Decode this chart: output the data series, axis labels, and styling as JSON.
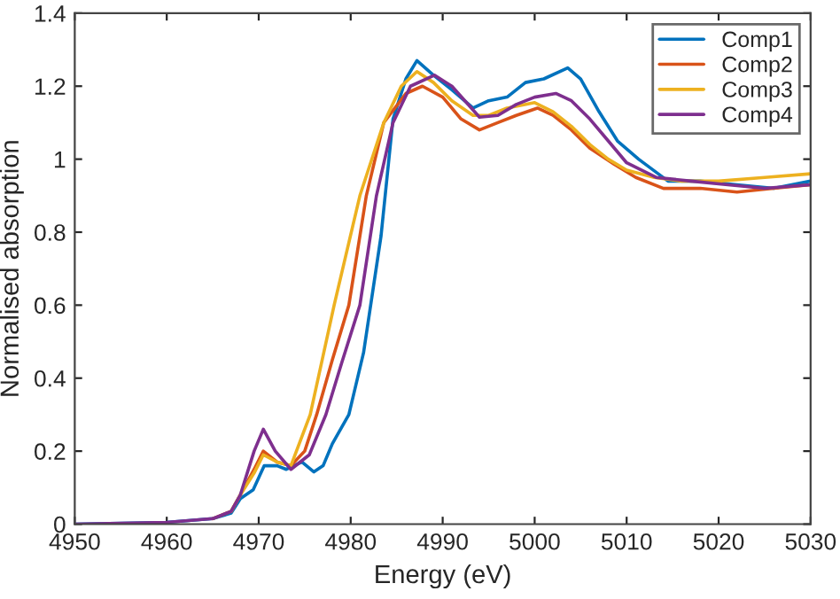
{
  "chart_data": {
    "type": "line",
    "xlabel": "Energy (eV)",
    "ylabel": "Normalised absorption",
    "xlim": [
      4950,
      5030
    ],
    "xticks": [
      4950,
      4960,
      4970,
      4980,
      4990,
      5000,
      5010,
      5020,
      5030
    ],
    "ylim": [
      0,
      1.4
    ],
    "yticks": [
      0,
      0.2,
      0.4,
      0.6,
      0.8,
      1,
      1.2,
      1.4
    ],
    "grid": false,
    "legend": "top right",
    "marker": "none",
    "line_style": "solid",
    "series": [
      {
        "name": "Comp1",
        "color": "#0072bd",
        "x": [
          4950,
          4960,
          4965,
          4967,
          4968,
          4969.4,
          4970.6,
          4972,
          4973,
          4974.7,
          4976,
          4977,
          4978,
          4979.8,
          4981.4,
          4983.3,
          4984.6,
          4986,
          4987.2,
          4989,
          4991,
          4993.3,
          4995,
          4997,
          4999,
          5001,
          5003.6,
          5005,
          5007,
          5009,
          5011.3,
          5014.5,
          5018,
          5022,
          5026,
          5030
        ],
        "values": [
          0,
          0.005,
          0.015,
          0.03,
          0.07,
          0.094,
          0.16,
          0.16,
          0.15,
          0.17,
          0.143,
          0.16,
          0.22,
          0.3,
          0.47,
          0.79,
          1.11,
          1.22,
          1.27,
          1.23,
          1.19,
          1.14,
          1.16,
          1.17,
          1.21,
          1.22,
          1.25,
          1.22,
          1.13,
          1.05,
          1.0,
          0.94,
          0.94,
          0.93,
          0.92,
          0.94
        ]
      },
      {
        "name": "Comp2",
        "color": "#d95319",
        "x": [
          4965,
          4967,
          4968,
          4969.5,
          4970.5,
          4972,
          4973.5,
          4975,
          4976.3,
          4978,
          4979.8,
          4981.7,
          4983.6,
          4986,
          4987.8,
          4990,
          4992,
          4994,
          4996,
          4998,
          5000.3,
          5002,
          5004,
          5006,
          5008.7,
          5011,
          5014,
          5018,
          5022,
          5026,
          5030
        ],
        "values": [
          0.015,
          0.035,
          0.08,
          0.15,
          0.2,
          0.17,
          0.16,
          0.2,
          0.3,
          0.45,
          0.6,
          0.9,
          1.1,
          1.18,
          1.2,
          1.17,
          1.11,
          1.08,
          1.1,
          1.12,
          1.14,
          1.12,
          1.08,
          1.03,
          0.985,
          0.95,
          0.92,
          0.92,
          0.91,
          0.92,
          0.93
        ]
      },
      {
        "name": "Comp3",
        "color": "#edb120",
        "x": [
          4967,
          4968,
          4969.5,
          4970.5,
          4972,
          4973.5,
          4975.6,
          4978.2,
          4981,
          4983.6,
          4985.5,
          4987.2,
          4989,
          4991,
          4993.3,
          4995,
          4997,
          5000,
          5002,
          5004,
          5006,
          5008,
          5010,
          5013,
          5016,
          5020,
          5025,
          5030
        ],
        "values": [
          0.035,
          0.08,
          0.14,
          0.19,
          0.17,
          0.16,
          0.3,
          0.6,
          0.9,
          1.1,
          1.2,
          1.24,
          1.21,
          1.16,
          1.12,
          1.12,
          1.14,
          1.155,
          1.13,
          1.09,
          1.04,
          1.0,
          0.97,
          0.95,
          0.94,
          0.94,
          0.95,
          0.96
        ]
      },
      {
        "name": "Comp4",
        "color": "#7e2f8e",
        "x": [
          4950,
          4960,
          4965,
          4967,
          4968,
          4969.5,
          4970.5,
          4971.8,
          4973.5,
          4975.5,
          4977.3,
          4979,
          4981,
          4982.8,
          4984.6,
          4986.5,
          4989.1,
          4991,
          4994,
          4996,
          4998,
          5000,
          5002.3,
          5004,
          5006,
          5008,
          5010,
          5013.2,
          5017,
          5021,
          5025,
          5030
        ],
        "values": [
          0,
          0.005,
          0.015,
          0.035,
          0.08,
          0.2,
          0.26,
          0.2,
          0.15,
          0.19,
          0.3,
          0.44,
          0.6,
          0.9,
          1.1,
          1.2,
          1.23,
          1.2,
          1.115,
          1.12,
          1.15,
          1.17,
          1.18,
          1.16,
          1.11,
          1.05,
          0.99,
          0.95,
          0.94,
          0.93,
          0.92,
          0.93
        ]
      }
    ]
  }
}
